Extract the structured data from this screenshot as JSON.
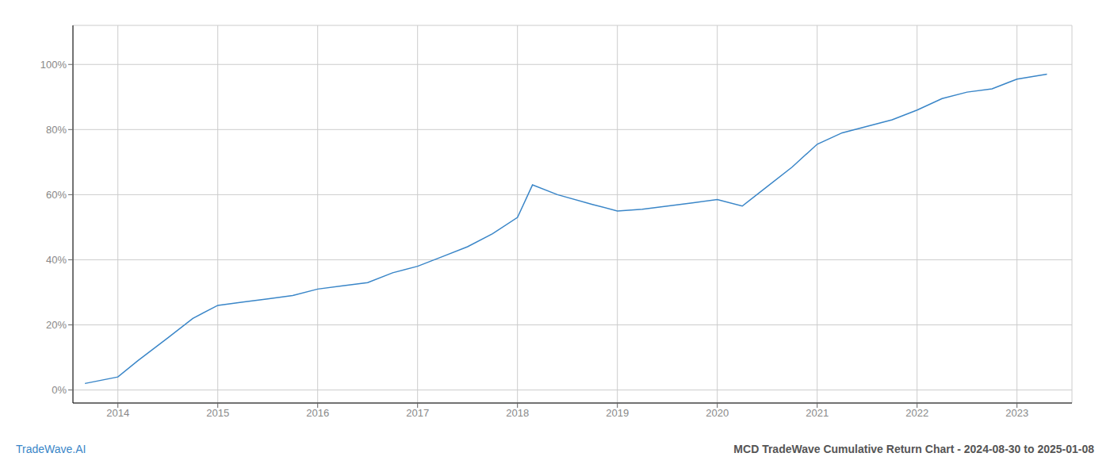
{
  "chart_data": {
    "type": "line",
    "x": [
      2013.67,
      2014.0,
      2014.2,
      2014.5,
      2014.75,
      2015.0,
      2015.25,
      2015.5,
      2015.75,
      2016.0,
      2016.25,
      2016.5,
      2016.75,
      2017.0,
      2017.25,
      2017.5,
      2017.75,
      2018.0,
      2018.15,
      2018.4,
      2018.75,
      2019.0,
      2019.25,
      2019.5,
      2019.75,
      2020.0,
      2020.25,
      2020.5,
      2020.75,
      2021.0,
      2021.25,
      2021.5,
      2021.75,
      2022.0,
      2022.25,
      2022.5,
      2022.75,
      2023.0,
      2023.3
    ],
    "values": [
      0.02,
      0.04,
      0.09,
      0.16,
      0.22,
      0.26,
      0.27,
      0.28,
      0.29,
      0.31,
      0.32,
      0.33,
      0.36,
      0.38,
      0.41,
      0.44,
      0.48,
      0.53,
      0.63,
      0.6,
      0.57,
      0.55,
      0.555,
      0.565,
      0.575,
      0.585,
      0.565,
      0.625,
      0.685,
      0.755,
      0.79,
      0.81,
      0.83,
      0.86,
      0.895,
      0.915,
      0.925,
      0.955,
      0.97
    ],
    "color": "#3a86c8",
    "xlim": [
      2013.55,
      2023.55
    ],
    "ylim": [
      -0.04,
      1.12
    ],
    "xticks": [
      2014,
      2015,
      2016,
      2017,
      2018,
      2019,
      2020,
      2021,
      2022,
      2023
    ],
    "yticks": [
      {
        "value": 0.0,
        "label": "0%"
      },
      {
        "value": 0.2,
        "label": "20%"
      },
      {
        "value": 0.4,
        "label": "40%"
      },
      {
        "value": 0.6,
        "label": "60%"
      },
      {
        "value": 0.8,
        "label": "80%"
      },
      {
        "value": 1.0,
        "label": "100%"
      }
    ],
    "grid": true,
    "annotations": [
      {
        "text": "TradeWave.AI",
        "color": "#3a86c8"
      },
      {
        "text": "MCD TradeWave Cumulative Return Chart - 2024-08-30 to 2025-01-08",
        "color": "#555555"
      }
    ]
  }
}
